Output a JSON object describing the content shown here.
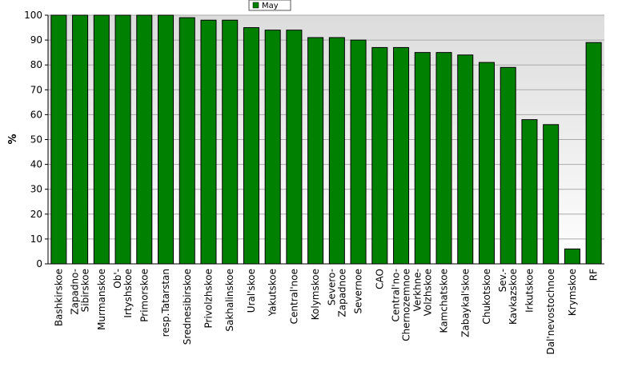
{
  "chart_data": {
    "type": "bar",
    "title": "",
    "xlabel": "",
    "ylabel": "%",
    "ylim": [
      0,
      100
    ],
    "yticks": [
      0,
      10,
      20,
      30,
      40,
      50,
      60,
      70,
      80,
      90,
      100
    ],
    "grid": true,
    "legend_position": "top-center",
    "categories": [
      "Bashkirskoe",
      "Zapadno-\nSibirskoe",
      "Murmanskoe",
      "Ob'-\nIrtyshskoe",
      "Primorskoe",
      "resp.Tatarstan",
      "Srednesibirskoe",
      "Privolzhskoe",
      "Sakhalinskoe",
      "Ural'skoe",
      "Yakutskoe",
      "Central'noe",
      "Kolymskoe",
      "Severo-\nZapadnoe",
      "Severnoe",
      "CAO",
      "Central'no-\nChernozemnoe",
      "Verkhne-\nVolzhskoe",
      "Kamchatskoe",
      "Zabaykal'skoe",
      "Chukotskoe",
      "Sev.-\nKavkazskoe",
      "Irkutskoe",
      "Dal'nevostochnoe",
      "Krymskoe",
      "RF"
    ],
    "series": [
      {
        "name": "May",
        "color": "#008000",
        "values": [
          100,
          100,
          100,
          100,
          100,
          100,
          99,
          98,
          98,
          95,
          94,
          94,
          91,
          91,
          90,
          87,
          87,
          85,
          85,
          84,
          81,
          79,
          58,
          56,
          6,
          89
        ]
      }
    ]
  }
}
